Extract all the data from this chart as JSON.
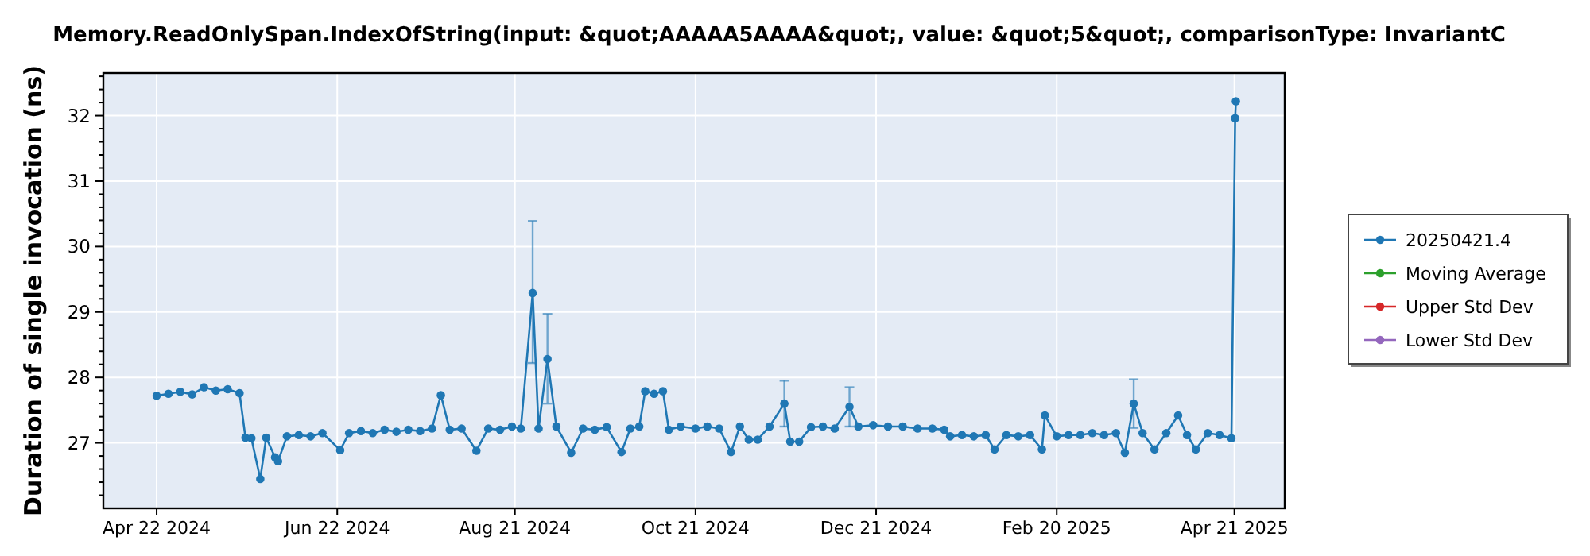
{
  "chart_data": {
    "type": "line",
    "title": "Memory.ReadOnlySpan.IndexOfString(input: &quot;AAAAA5AAAA&quot;, value: &quot;5&quot;, comparisonType: InvariantC",
    "ylabel": "Duration of single invocation (ns)",
    "x": [
      "2024-04-22",
      "2024-04-26",
      "2024-04-30",
      "2024-05-04",
      "2024-05-08",
      "2024-05-12",
      "2024-05-16",
      "2024-05-20",
      "2024-05-22",
      "2024-05-24",
      "2024-05-27",
      "2024-05-29",
      "2024-06-01",
      "2024-06-02",
      "2024-06-05",
      "2024-06-09",
      "2024-06-13",
      "2024-06-17",
      "2024-06-23",
      "2024-06-26",
      "2024-06-30",
      "2024-07-04",
      "2024-07-08",
      "2024-07-12",
      "2024-07-16",
      "2024-07-20",
      "2024-07-24",
      "2024-07-27",
      "2024-07-30",
      "2024-08-03",
      "2024-08-08",
      "2024-08-12",
      "2024-08-16",
      "2024-08-20",
      "2024-08-23",
      "2024-08-27",
      "2024-08-29",
      "2024-09-01",
      "2024-09-04",
      "2024-09-09",
      "2024-09-13",
      "2024-09-17",
      "2024-09-21",
      "2024-09-26",
      "2024-09-29",
      "2024-10-02",
      "2024-10-04",
      "2024-10-07",
      "2024-10-10",
      "2024-10-12",
      "2024-10-16",
      "2024-10-21",
      "2024-10-25",
      "2024-10-29",
      "2024-11-02",
      "2024-11-05",
      "2024-11-08",
      "2024-11-11",
      "2024-11-15",
      "2024-11-20",
      "2024-11-22",
      "2024-11-25",
      "2024-11-29",
      "2024-12-03",
      "2024-12-07",
      "2024-12-12",
      "2024-12-15",
      "2024-12-20",
      "2024-12-25",
      "2024-12-30",
      "2025-01-04",
      "2025-01-09",
      "2025-01-13",
      "2025-01-15",
      "2025-01-19",
      "2025-01-23",
      "2025-01-27",
      "2025-01-30",
      "2025-02-03",
      "2025-02-07",
      "2025-02-11",
      "2025-02-15",
      "2025-02-16",
      "2025-02-20",
      "2025-02-24",
      "2025-02-28",
      "2025-03-04",
      "2025-03-08",
      "2025-03-12",
      "2025-03-15",
      "2025-03-18",
      "2025-03-21",
      "2025-03-25",
      "2025-03-29",
      "2025-04-02",
      "2025-04-05",
      "2025-04-08",
      "2025-04-12",
      "2025-04-16",
      "2025-04-20",
      "2025-04-21T06:00",
      "2025-04-21T12:00"
    ],
    "series": [
      {
        "name": "20250421.4",
        "color": "#1f77b4",
        "values": [
          27.72,
          27.75,
          27.78,
          27.74,
          27.85,
          27.8,
          27.82,
          27.76,
          27.08,
          27.07,
          26.45,
          27.08,
          26.78,
          26.72,
          27.1,
          27.12,
          27.1,
          27.15,
          26.89,
          27.15,
          27.18,
          27.15,
          27.2,
          27.17,
          27.2,
          27.18,
          27.22,
          27.73,
          27.2,
          27.22,
          26.88,
          27.22,
          27.2,
          27.25,
          27.22,
          29.29,
          27.22,
          28.28,
          27.25,
          26.85,
          27.22,
          27.2,
          27.24,
          26.86,
          27.22,
          27.25,
          27.79,
          27.75,
          27.79,
          27.2,
          27.25,
          27.22,
          27.25,
          27.22,
          26.86,
          27.25,
          27.05,
          27.05,
          27.25,
          27.6,
          27.02,
          27.02,
          27.24,
          27.25,
          27.22,
          27.55,
          27.25,
          27.27,
          27.25,
          27.25,
          27.22,
          27.22,
          27.2,
          27.1,
          27.12,
          27.1,
          27.12,
          26.9,
          27.12,
          27.1,
          27.12,
          26.9,
          27.42,
          27.1,
          27.12,
          27.12,
          27.15,
          27.12,
          27.15,
          26.85,
          27.6,
          27.15,
          26.9,
          27.15,
          27.42,
          27.12,
          26.9,
          27.15,
          27.12,
          27.07,
          31.96,
          32.22
        ],
        "errors": [
          null,
          null,
          null,
          null,
          null,
          null,
          null,
          null,
          null,
          null,
          null,
          null,
          null,
          null,
          null,
          null,
          null,
          null,
          null,
          null,
          null,
          null,
          null,
          null,
          null,
          null,
          null,
          null,
          null,
          null,
          null,
          null,
          null,
          null,
          null,
          [
            28.22,
            30.39
          ],
          null,
          [
            27.6,
            28.97
          ],
          null,
          null,
          null,
          null,
          null,
          null,
          null,
          null,
          null,
          null,
          null,
          null,
          null,
          null,
          null,
          null,
          null,
          null,
          null,
          null,
          null,
          0.35,
          null,
          null,
          null,
          null,
          null,
          0.3,
          null,
          null,
          null,
          null,
          null,
          null,
          null,
          null,
          null,
          null,
          null,
          null,
          null,
          null,
          null,
          null,
          null,
          null,
          null,
          null,
          null,
          null,
          null,
          null,
          0.37,
          null,
          null,
          null,
          null,
          null,
          null,
          null,
          null,
          null,
          null,
          null
        ]
      },
      {
        "name": "Moving Average",
        "color": "#2ca02c",
        "values": [
          null,
          null,
          null,
          null,
          null,
          null,
          null,
          null,
          null,
          null,
          null,
          null,
          null,
          null,
          null,
          null,
          null,
          null,
          null,
          null,
          null,
          null,
          null,
          null,
          null,
          null,
          null,
          null,
          null,
          null,
          null,
          null,
          null,
          null,
          null,
          null,
          null,
          null,
          null,
          null,
          null,
          null,
          null,
          null,
          null,
          null,
          null,
          null,
          null,
          null,
          null,
          null,
          null,
          null,
          null,
          null,
          null,
          null,
          null,
          null,
          null,
          null,
          null,
          null,
          null,
          null,
          null,
          null,
          null,
          null,
          null,
          null,
          null,
          null,
          null,
          null,
          null,
          null,
          null,
          null,
          null,
          null,
          null,
          null,
          null,
          null,
          null,
          null,
          null,
          null,
          null,
          null,
          null,
          null,
          null,
          null,
          null,
          null,
          null,
          null,
          null,
          null
        ]
      },
      {
        "name": "Upper Std Dev",
        "color": "#d62728",
        "values": [
          null,
          null,
          null,
          null,
          null,
          null,
          null,
          null,
          null,
          null,
          null,
          null,
          null,
          null,
          null,
          null,
          null,
          null,
          null,
          null,
          null,
          null,
          null,
          null,
          null,
          null,
          null,
          null,
          null,
          null,
          null,
          null,
          null,
          null,
          null,
          null,
          null,
          null,
          null,
          null,
          null,
          null,
          null,
          null,
          null,
          null,
          null,
          null,
          null,
          null,
          null,
          null,
          null,
          null,
          null,
          null,
          null,
          null,
          null,
          null,
          null,
          null,
          null,
          null,
          null,
          null,
          null,
          null,
          null,
          null,
          null,
          null,
          null,
          null,
          null,
          null,
          null,
          null,
          null,
          null,
          null,
          null,
          null,
          null,
          null,
          null,
          null,
          null,
          null,
          null,
          null,
          null,
          null,
          null,
          null,
          null,
          null,
          null,
          null,
          null,
          null,
          null
        ]
      },
      {
        "name": "Lower Std Dev",
        "color": "#9467bd",
        "values": [
          null,
          null,
          null,
          null,
          null,
          null,
          null,
          null,
          null,
          null,
          null,
          null,
          null,
          null,
          null,
          null,
          null,
          null,
          null,
          null,
          null,
          null,
          null,
          null,
          null,
          null,
          null,
          null,
          null,
          null,
          null,
          null,
          null,
          null,
          null,
          null,
          null,
          null,
          null,
          null,
          null,
          null,
          null,
          null,
          null,
          null,
          null,
          null,
          null,
          null,
          null,
          null,
          null,
          null,
          null,
          null,
          null,
          null,
          null,
          null,
          null,
          null,
          null,
          null,
          null,
          null,
          null,
          null,
          null,
          null,
          null,
          null,
          null,
          null,
          null,
          null,
          null,
          null,
          null,
          null,
          null,
          null,
          null,
          null,
          null,
          null,
          null,
          null,
          null,
          null,
          null,
          null,
          null,
          null,
          null,
          null,
          null,
          null,
          null,
          null,
          null,
          null
        ]
      }
    ],
    "xlim": [
      "2024-04-04",
      "2025-05-08"
    ],
    "xticks": [
      {
        "value": "2024-04-22",
        "label": "Apr 22 2024"
      },
      {
        "value": "2024-06-22",
        "label": "Jun 22 2024"
      },
      {
        "value": "2024-08-21",
        "label": "Aug 21 2024"
      },
      {
        "value": "2024-10-21",
        "label": "Oct 21 2024"
      },
      {
        "value": "2024-12-21",
        "label": "Dec 21 2024"
      },
      {
        "value": "2025-02-20",
        "label": "Feb 20 2025"
      },
      {
        "value": "2025-04-21",
        "label": "Apr 21 2025"
      }
    ],
    "ylim": [
      26,
      32.65
    ],
    "yticks": [
      {
        "value": 26.2,
        "label": null
      },
      {
        "value": 26.4,
        "label": null
      },
      {
        "value": 26.6,
        "label": null
      },
      {
        "value": 26.8,
        "label": null
      },
      27,
      {
        "value": 27.2,
        "label": null
      },
      {
        "value": 27.4,
        "label": null
      },
      {
        "value": 27.6,
        "label": null
      },
      {
        "value": 27.8,
        "label": null
      },
      28,
      {
        "value": 28.2,
        "label": null
      },
      {
        "value": 28.4,
        "label": null
      },
      {
        "value": 28.6,
        "label": null
      },
      {
        "value": 28.8,
        "label": null
      },
      29,
      {
        "value": 29.2,
        "label": null
      },
      {
        "value": 29.4,
        "label": null
      },
      {
        "value": 29.6,
        "label": null
      },
      {
        "value": 29.8,
        "label": null
      },
      30,
      {
        "value": 30.2,
        "label": null
      },
      {
        "value": 30.4,
        "label": null
      },
      {
        "value": 30.6,
        "label": null
      },
      {
        "value": 30.8,
        "label": null
      },
      31,
      {
        "value": 31.2,
        "label": null
      },
      {
        "value": 31.4,
        "label": null
      },
      {
        "value": 31.6,
        "label": null
      },
      {
        "value": 31.8,
        "label": null
      },
      32,
      {
        "value": 32.2,
        "label": null
      },
      {
        "value": 32.4,
        "label": null
      },
      {
        "value": 32.6,
        "label": null
      }
    ],
    "grid": true,
    "legend": "right",
    "marker": "circle",
    "line_style": "solid"
  }
}
